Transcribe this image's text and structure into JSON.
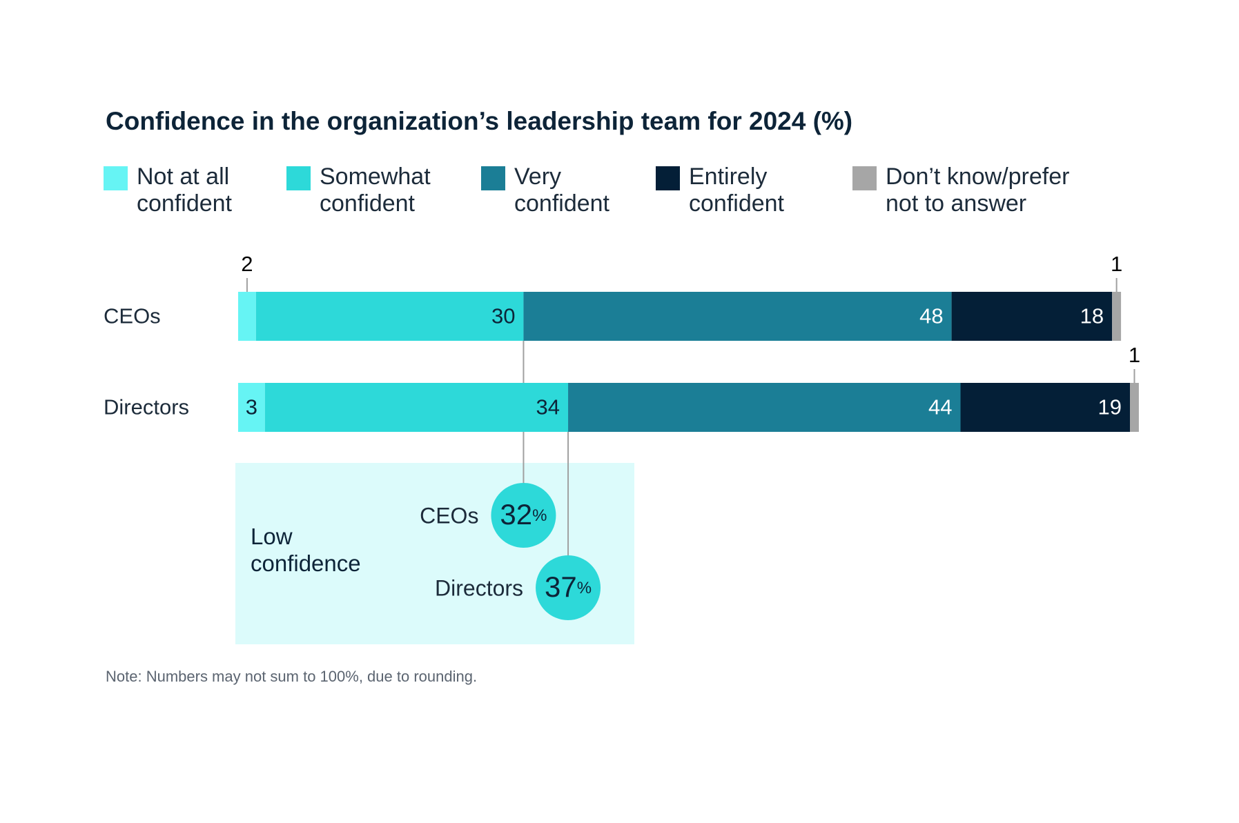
{
  "chart_data": {
    "type": "stacked-bar",
    "title": "Confidence in the organization’s leadership team for 2024 (%)",
    "categories": [
      "CEOs",
      "Directors"
    ],
    "series": [
      {
        "name": "Not at all confident",
        "color": "#66f4f4",
        "values": [
          2,
          3
        ]
      },
      {
        "name": "Somewhat confident",
        "color": "#2dd9d9",
        "values": [
          30,
          34
        ]
      },
      {
        "name": "Very confident",
        "color": "#1b7e96",
        "values": [
          48,
          44
        ]
      },
      {
        "name": "Entirely confident",
        "color": "#041f37",
        "values": [
          18,
          19
        ]
      },
      {
        "name": "Don’t know/prefer not to answer",
        "color": "#a6a6a6",
        "values": [
          1,
          1
        ]
      }
    ],
    "annotation": {
      "title": "Low confidence",
      "color": "#dcfbfb",
      "items": [
        {
          "name": "CEOs",
          "value": 32,
          "unit": "%"
        },
        {
          "name": "Directors",
          "value": 37,
          "unit": "%"
        }
      ]
    },
    "note": "Note: Numbers may not sum to 100%, due to rounding."
  }
}
